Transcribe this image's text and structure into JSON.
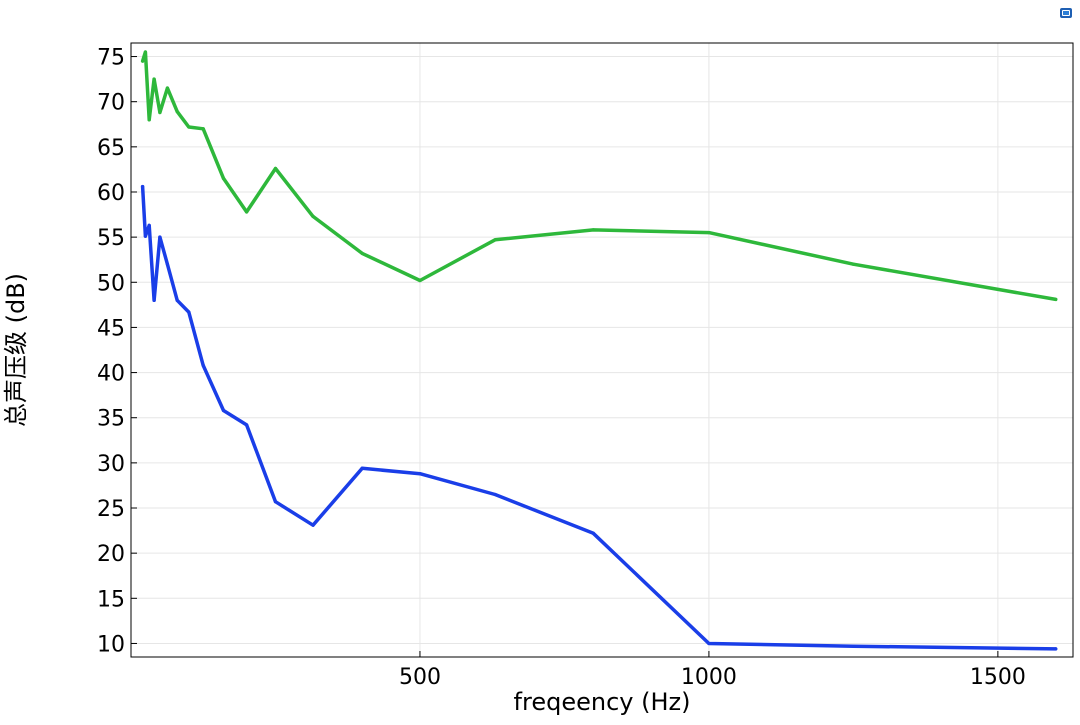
{
  "chart_data": {
    "type": "line",
    "xlabel": "freqeency (Hz)",
    "ylabel": "总声压级 (dB)",
    "xlim": [
      0,
      1630
    ],
    "ylim": [
      8.5,
      76.5
    ],
    "xticks": [
      500,
      1000,
      1500
    ],
    "yticks": [
      10,
      15,
      20,
      25,
      30,
      35,
      40,
      45,
      50,
      55,
      60,
      65,
      70,
      75
    ],
    "grid": true,
    "legend": "none",
    "series": [
      {
        "color": "#2eb83b",
        "x": [
          20,
          25,
          31.5,
          40,
          50,
          63,
          80,
          100,
          125,
          160,
          200,
          250,
          315,
          400,
          500,
          630,
          800,
          1000,
          1250,
          1600
        ],
        "y": [
          74.5,
          75.5,
          68.0,
          72.5,
          68.8,
          71.5,
          68.9,
          67.2,
          67.0,
          61.5,
          57.8,
          62.6,
          57.3,
          53.2,
          50.2,
          54.7,
          55.8,
          55.5,
          52.0,
          48.1
        ]
      },
      {
        "color": "#1a3ee8",
        "x": [
          20,
          25,
          31.5,
          40,
          50,
          63,
          80,
          100,
          125,
          160,
          200,
          250,
          315,
          400,
          500,
          630,
          800,
          1000,
          1250,
          1600
        ],
        "y": [
          60.6,
          55.1,
          56.3,
          48.0,
          55.0,
          52.0,
          48.0,
          46.7,
          40.8,
          35.8,
          34.2,
          25.7,
          23.1,
          29.4,
          28.8,
          26.5,
          22.2,
          10.0,
          9.7,
          9.4
        ]
      }
    ]
  },
  "toolbar": {
    "icon": "window-icon"
  }
}
